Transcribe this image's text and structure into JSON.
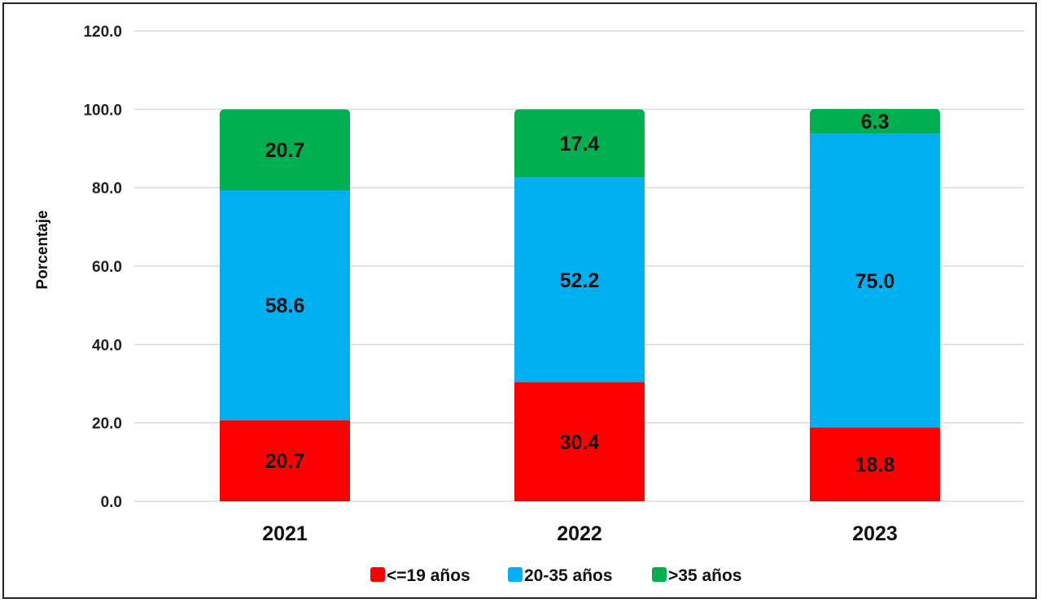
{
  "chart_data": {
    "type": "bar",
    "stacked": true,
    "categories": [
      "2021",
      "2022",
      "2023"
    ],
    "series": [
      {
        "name": "<=19 años",
        "color": "#ff0000",
        "values": [
          20.7,
          30.4,
          18.8
        ],
        "labels": [
          "20.7",
          "30.4",
          "18.8"
        ]
      },
      {
        "name": "20-35 años",
        "color": "#00b0f0",
        "values": [
          58.6,
          52.2,
          75.0
        ],
        "labels": [
          "58.6",
          "52.2",
          "75.0"
        ]
      },
      {
        "name": ">35 años",
        "color": "#00b050",
        "values": [
          20.7,
          17.4,
          6.3
        ],
        "labels": [
          "20.7",
          "17.4",
          "6.3"
        ]
      }
    ],
    "title": "",
    "xlabel": "",
    "ylabel": "Porcentaje",
    "ylim": [
      0,
      120
    ],
    "yticks": [
      "0.0",
      "20.0",
      "40.0",
      "60.0",
      "80.0",
      "100.0",
      "120.0"
    ],
    "grid": true,
    "legend": "bottom"
  }
}
